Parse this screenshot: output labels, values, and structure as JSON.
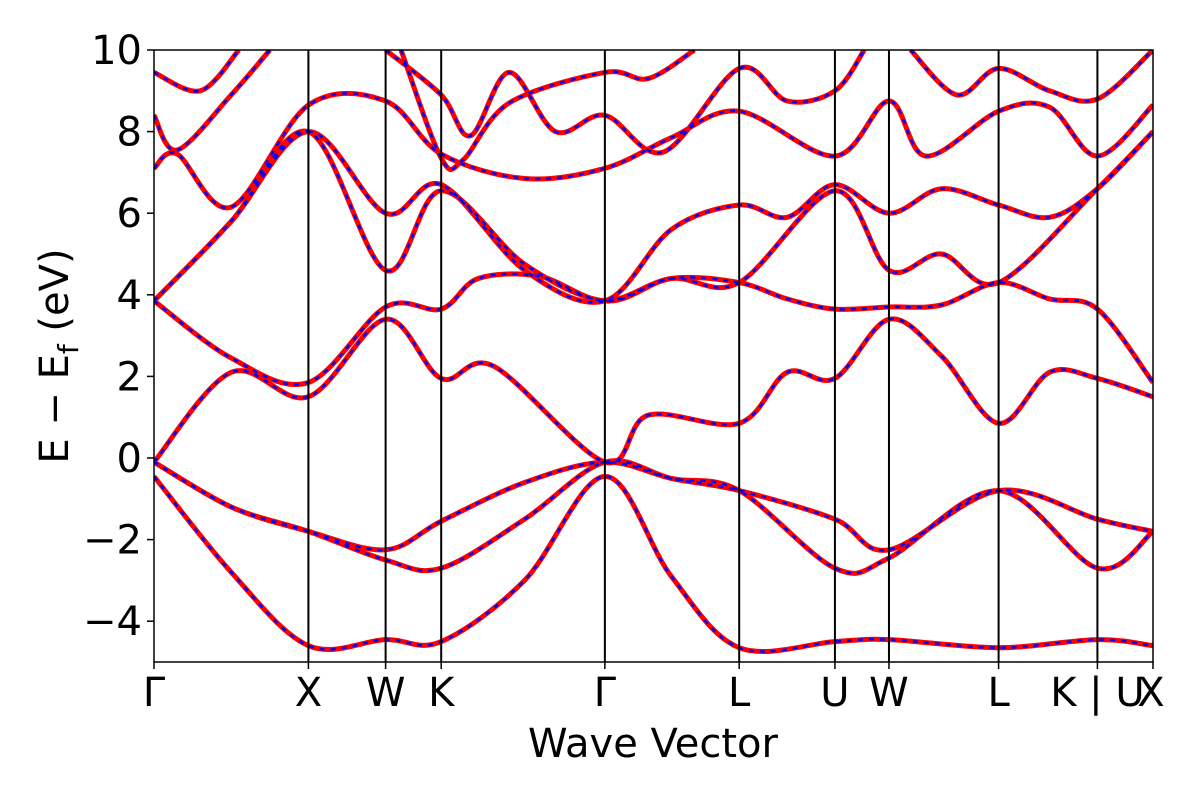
{
  "chart_data": {
    "type": "line",
    "xlabel": "Wave Vector",
    "ylabel": "E − E_f (eV)",
    "ylabel_parts": {
      "main": "E − E",
      "sub": "f",
      "unit": " (eV)"
    },
    "ylim": [
      -5,
      10
    ],
    "xlim": [
      0,
      6.47
    ],
    "y_ticks": [
      {
        "value": 10,
        "label": "10"
      },
      {
        "value": 8,
        "label": "8"
      },
      {
        "value": 6,
        "label": "6"
      },
      {
        "value": 4,
        "label": "4"
      },
      {
        "value": 2,
        "label": "2"
      },
      {
        "value": 0,
        "label": "0"
      },
      {
        "value": -2,
        "label": "−2"
      },
      {
        "value": -4,
        "label": "−4"
      }
    ],
    "kpoints": [
      {
        "value": 0.0,
        "label": "Γ"
      },
      {
        "value": 1.0,
        "label": "X"
      },
      {
        "value": 1.5,
        "label": "W"
      },
      {
        "value": 1.86,
        "label": "K"
      },
      {
        "value": 2.92,
        "label": "Γ"
      },
      {
        "value": 3.79,
        "label": "L"
      },
      {
        "value": 4.41,
        "label": "U"
      },
      {
        "value": 4.76,
        "label": "W"
      },
      {
        "value": 5.47,
        "label": "L"
      },
      {
        "value": 6.11,
        "label": "K | U"
      },
      {
        "value": 6.47,
        "label": "X"
      }
    ],
    "line_colors": {
      "dft": "#ff0000",
      "wannier": "#0000ff"
    },
    "bands": [
      [
        [
          0,
          -0.45
        ],
        [
          0.5,
          -2.8
        ],
        [
          1.0,
          -4.6
        ],
        [
          1.5,
          -4.45
        ],
        [
          1.86,
          -4.5
        ],
        [
          2.4,
          -3.0
        ],
        [
          2.92,
          -0.45
        ],
        [
          3.35,
          -2.9
        ],
        [
          3.79,
          -4.65
        ],
        [
          4.41,
          -4.5
        ],
        [
          4.76,
          -4.45
        ],
        [
          5.47,
          -4.65
        ],
        [
          6.11,
          -4.45
        ],
        [
          6.47,
          -4.6
        ]
      ],
      [
        [
          0,
          -0.1
        ],
        [
          0.5,
          -1.2
        ],
        [
          1.0,
          -1.8
        ],
        [
          1.5,
          -2.5
        ],
        [
          1.86,
          -2.7
        ],
        [
          2.4,
          -1.5
        ],
        [
          2.92,
          -0.1
        ],
        [
          3.35,
          -0.5
        ],
        [
          3.79,
          -0.8
        ],
        [
          4.41,
          -2.7
        ],
        [
          4.76,
          -2.45
        ],
        [
          5.47,
          -0.8
        ],
        [
          6.11,
          -2.7
        ],
        [
          6.47,
          -1.8
        ]
      ],
      [
        [
          0,
          -0.1
        ],
        [
          0.5,
          -1.2
        ],
        [
          1.0,
          -1.8
        ],
        [
          1.5,
          -2.25
        ],
        [
          1.86,
          -1.55
        ],
        [
          2.4,
          -0.6
        ],
        [
          2.92,
          -0.1
        ],
        [
          3.35,
          -0.5
        ],
        [
          3.79,
          -0.8
        ],
        [
          4.41,
          -1.5
        ],
        [
          4.76,
          -2.25
        ],
        [
          5.47,
          -0.8
        ],
        [
          6.11,
          -1.5
        ],
        [
          6.47,
          -1.8
        ]
      ],
      [
        [
          0,
          -0.1
        ],
        [
          0.5,
          2.1
        ],
        [
          1.0,
          1.5
        ],
        [
          1.5,
          3.4
        ],
        [
          1.86,
          1.95
        ],
        [
          2.2,
          2.25
        ],
        [
          2.92,
          -0.1
        ],
        [
          3.2,
          1.05
        ],
        [
          3.79,
          0.85
        ],
        [
          4.1,
          2.1
        ],
        [
          4.41,
          1.95
        ],
        [
          4.76,
          3.4
        ],
        [
          5.1,
          2.5
        ],
        [
          5.47,
          0.85
        ],
        [
          5.8,
          2.1
        ],
        [
          6.11,
          1.95
        ],
        [
          6.47,
          1.5
        ]
      ],
      [
        [
          0,
          3.85
        ],
        [
          0.5,
          2.45
        ],
        [
          1.0,
          1.85
        ],
        [
          1.5,
          3.7
        ],
        [
          1.86,
          3.65
        ],
        [
          2.1,
          4.4
        ],
        [
          2.5,
          4.45
        ],
        [
          2.92,
          3.85
        ],
        [
          3.35,
          4.4
        ],
        [
          3.79,
          4.3
        ],
        [
          4.1,
          3.9
        ],
        [
          4.41,
          3.65
        ],
        [
          4.76,
          3.7
        ],
        [
          5.1,
          3.75
        ],
        [
          5.47,
          4.3
        ],
        [
          5.8,
          3.9
        ],
        [
          6.11,
          3.65
        ],
        [
          6.47,
          1.85
        ]
      ],
      [
        [
          0,
          3.85
        ],
        [
          0.5,
          5.8
        ],
        [
          1.0,
          8.0
        ],
        [
          1.5,
          4.6
        ],
        [
          1.86,
          6.55
        ],
        [
          2.4,
          4.75
        ],
        [
          2.92,
          3.85
        ],
        [
          3.35,
          4.4
        ],
        [
          3.79,
          4.3
        ],
        [
          4.41,
          6.55
        ],
        [
          4.76,
          4.6
        ],
        [
          5.1,
          5.0
        ],
        [
          5.47,
          4.3
        ],
        [
          6.11,
          6.6
        ],
        [
          6.47,
          8.0
        ]
      ],
      [
        [
          0,
          3.85
        ],
        [
          0.5,
          5.8
        ],
        [
          1.0,
          8.0
        ],
        [
          1.5,
          6.0
        ],
        [
          1.86,
          6.7
        ],
        [
          2.4,
          4.6
        ],
        [
          2.92,
          3.85
        ],
        [
          3.35,
          5.6
        ],
        [
          3.79,
          6.2
        ],
        [
          4.1,
          5.9
        ],
        [
          4.41,
          6.7
        ],
        [
          4.76,
          6.0
        ],
        [
          5.1,
          6.6
        ],
        [
          5.47,
          6.2
        ],
        [
          5.8,
          5.9
        ],
        [
          6.11,
          6.6
        ],
        [
          6.47,
          8.0
        ]
      ],
      [
        [
          0,
          7.1
        ],
        [
          0.15,
          7.45
        ],
        [
          0.5,
          6.15
        ],
        [
          1.0,
          8.65
        ],
        [
          1.5,
          8.75
        ],
        [
          1.86,
          7.45
        ],
        [
          2.4,
          6.85
        ],
        [
          2.92,
          7.1
        ],
        [
          3.35,
          7.85
        ],
        [
          3.79,
          8.5
        ],
        [
          4.41,
          7.4
        ],
        [
          4.76,
          8.75
        ],
        [
          5.0,
          7.4
        ],
        [
          5.47,
          8.5
        ],
        [
          5.8,
          8.6
        ],
        [
          6.11,
          7.4
        ],
        [
          6.47,
          8.65
        ]
      ],
      [
        [
          0,
          8.4
        ],
        [
          0.15,
          7.55
        ],
        [
          0.5,
          8.9
        ],
        [
          0.75,
          10.0
        ]
      ],
      [
        [
          0,
          9.45
        ],
        [
          0.3,
          9.0
        ],
        [
          0.55,
          10.0
        ]
      ],
      [
        [
          1.5,
          10.0
        ],
        [
          1.86,
          8.9
        ],
        [
          2.05,
          7.9
        ],
        [
          2.3,
          9.45
        ],
        [
          2.6,
          8.0
        ],
        [
          2.92,
          8.4
        ],
        [
          3.3,
          7.5
        ],
        [
          3.79,
          9.55
        ],
        [
          4.1,
          8.75
        ],
        [
          4.41,
          9.0
        ],
        [
          4.6,
          10.0
        ]
      ],
      [
        [
          1.6,
          10.0
        ],
        [
          1.86,
          7.35
        ],
        [
          2.0,
          7.3
        ],
        [
          2.3,
          8.7
        ],
        [
          2.92,
          9.45
        ],
        [
          3.2,
          9.3
        ],
        [
          3.5,
          10.0
        ]
      ],
      [
        [
          4.9,
          10.0
        ],
        [
          5.2,
          8.9
        ],
        [
          5.47,
          9.55
        ],
        [
          5.8,
          9.0
        ],
        [
          6.11,
          8.8
        ],
        [
          6.47,
          10.0
        ]
      ]
    ]
  }
}
